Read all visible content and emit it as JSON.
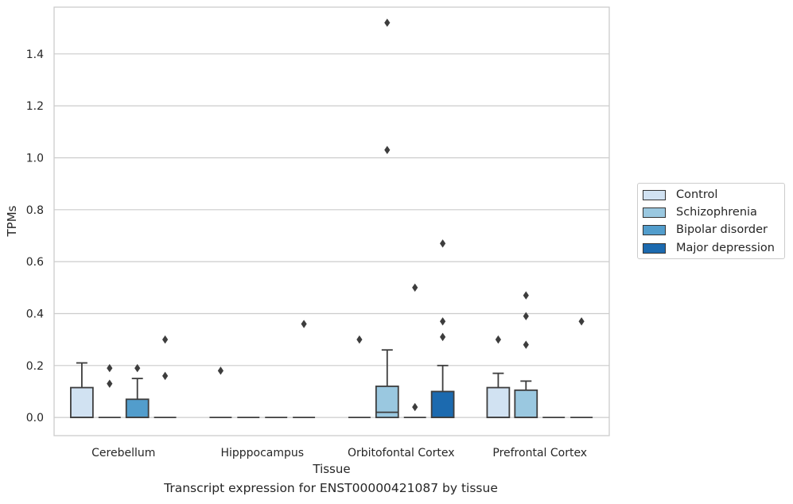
{
  "caption": "Transcript expression for ENST00000421087 by tissue",
  "chart_data": {
    "type": "box",
    "title": "",
    "xlabel": "Tissue",
    "ylabel": "TPMs",
    "ylim": [
      -0.07,
      1.58
    ],
    "yticks": [
      0.0,
      0.2,
      0.4,
      0.6,
      0.8,
      1.0,
      1.2,
      1.4
    ],
    "ytick_labels": [
      "0.0",
      "0.2",
      "0.4",
      "0.6",
      "0.8",
      "1.0",
      "1.2",
      "1.4"
    ],
    "grid": "horizontal",
    "legend_position": "right",
    "categories": [
      "Cerebellum",
      "Hipppocampus",
      "Orbitofontal Cortex",
      "Prefrontal Cortex"
    ],
    "series": [
      {
        "name": "Control",
        "color": "#d1e2f2",
        "boxes": [
          {
            "category": "Cerebellum",
            "q1": 0.0,
            "median": 0.0,
            "q3": 0.115,
            "whisker_low": 0.0,
            "whisker_high": 0.21,
            "outliers": []
          },
          {
            "category": "Hipppocampus",
            "q1": 0.0,
            "median": 0.0,
            "q3": 0.0,
            "whisker_low": 0.0,
            "whisker_high": 0.0,
            "outliers": [
              0.18
            ]
          },
          {
            "category": "Orbitofontal Cortex",
            "q1": 0.0,
            "median": 0.0,
            "q3": 0.0,
            "whisker_low": 0.0,
            "whisker_high": 0.0,
            "outliers": [
              0.3
            ]
          },
          {
            "category": "Prefrontal Cortex",
            "q1": 0.0,
            "median": 0.0,
            "q3": 0.115,
            "whisker_low": 0.0,
            "whisker_high": 0.17,
            "outliers": [
              0.3
            ]
          }
        ]
      },
      {
        "name": "Schizophrenia",
        "color": "#9ac8e0",
        "boxes": [
          {
            "category": "Cerebellum",
            "q1": 0.0,
            "median": 0.0,
            "q3": 0.0,
            "whisker_low": 0.0,
            "whisker_high": 0.0,
            "outliers": [
              0.13,
              0.19
            ]
          },
          {
            "category": "Hipppocampus",
            "q1": 0.0,
            "median": 0.0,
            "q3": 0.0,
            "whisker_low": 0.0,
            "whisker_high": 0.0,
            "outliers": []
          },
          {
            "category": "Orbitofontal Cortex",
            "q1": 0.0,
            "median": 0.02,
            "q3": 0.12,
            "whisker_low": 0.0,
            "whisker_high": 0.26,
            "outliers": [
              1.03,
              1.52
            ]
          },
          {
            "category": "Prefrontal Cortex",
            "q1": 0.0,
            "median": 0.0,
            "q3": 0.105,
            "whisker_low": 0.0,
            "whisker_high": 0.14,
            "outliers": [
              0.28,
              0.39,
              0.47
            ]
          }
        ]
      },
      {
        "name": "Bipolar disorder",
        "color": "#529dcc",
        "boxes": [
          {
            "category": "Cerebellum",
            "q1": 0.0,
            "median": 0.0,
            "q3": 0.07,
            "whisker_low": 0.0,
            "whisker_high": 0.15,
            "outliers": [
              0.19
            ]
          },
          {
            "category": "Hipppocampus",
            "q1": 0.0,
            "median": 0.0,
            "q3": 0.0,
            "whisker_low": 0.0,
            "whisker_high": 0.0,
            "outliers": []
          },
          {
            "category": "Orbitofontal Cortex",
            "q1": 0.0,
            "median": 0.0,
            "q3": 0.0,
            "whisker_low": 0.0,
            "whisker_high": 0.0,
            "outliers": [
              0.04,
              0.5
            ]
          },
          {
            "category": "Prefrontal Cortex",
            "q1": 0.0,
            "median": 0.0,
            "q3": 0.0,
            "whisker_low": 0.0,
            "whisker_high": 0.0,
            "outliers": []
          }
        ]
      },
      {
        "name": "Major depression",
        "color": "#1c6aaf",
        "boxes": [
          {
            "category": "Cerebellum",
            "q1": 0.0,
            "median": 0.0,
            "q3": 0.0,
            "whisker_low": 0.0,
            "whisker_high": 0.0,
            "outliers": [
              0.16,
              0.3
            ]
          },
          {
            "category": "Hipppocampus",
            "q1": 0.0,
            "median": 0.0,
            "q3": 0.0,
            "whisker_low": 0.0,
            "whisker_high": 0.0,
            "outliers": [
              0.36
            ]
          },
          {
            "category": "Orbitofontal Cortex",
            "q1": 0.0,
            "median": 0.0,
            "q3": 0.1,
            "whisker_low": 0.0,
            "whisker_high": 0.2,
            "outliers": [
              0.31,
              0.37,
              0.67
            ]
          },
          {
            "category": "Prefrontal Cortex",
            "q1": 0.0,
            "median": 0.0,
            "q3": 0.0,
            "whisker_low": 0.0,
            "whisker_high": 0.0,
            "outliers": [
              0.37
            ]
          }
        ]
      }
    ]
  }
}
